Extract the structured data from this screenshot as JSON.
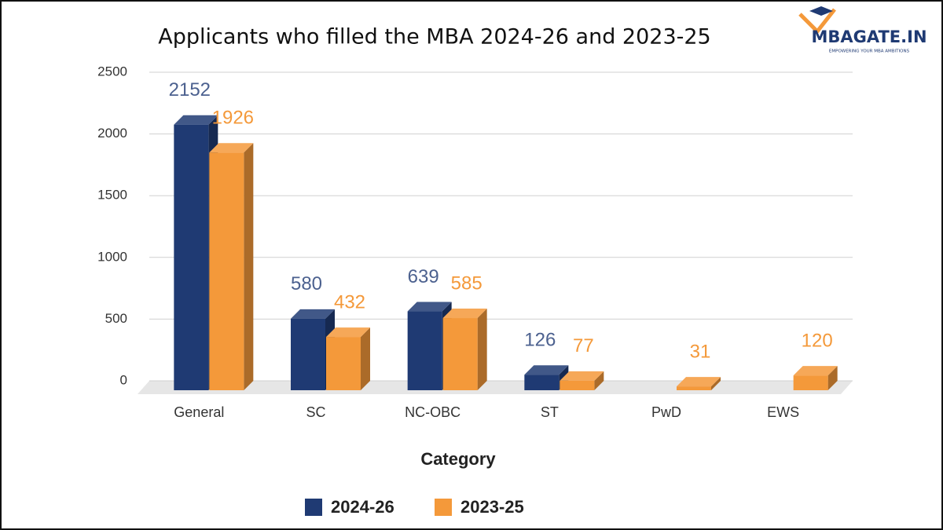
{
  "chart_data": {
    "type": "bar3d",
    "title": "Applicants who filled the MBA 2024-26 and 2023-25",
    "x_label": "Category",
    "categories": [
      "General",
      "SC",
      "NC-OBC",
      "ST",
      "PwD",
      "EWS"
    ],
    "series": [
      {
        "name": "2024-26",
        "color": "#1f3a73",
        "values": [
          2152,
          580,
          639,
          126,
          null,
          null
        ]
      },
      {
        "name": "2023-25",
        "color": "#f4993a",
        "values": [
          1926,
          432,
          585,
          77,
          31,
          120
        ]
      }
    ],
    "ylim": [
      0,
      2500
    ],
    "yticks": [
      0,
      500,
      1000,
      1500,
      2000,
      2500
    ],
    "grid": true,
    "legend": "bottom"
  },
  "logo": {
    "name": "MBAGATE.IN",
    "tagline": "EMPOWERING YOUR MBA AMBITIONS"
  }
}
